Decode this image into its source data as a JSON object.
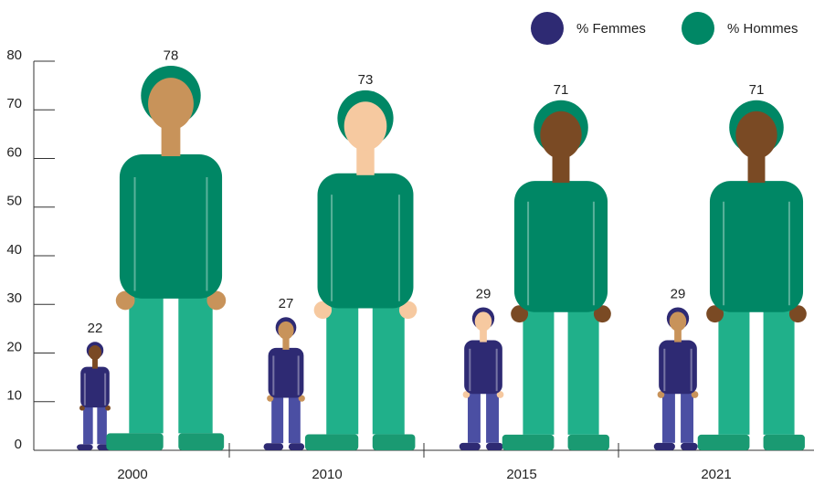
{
  "chart_data": {
    "type": "pictograph",
    "categories": [
      "2000",
      "2010",
      "2015",
      "2021"
    ],
    "series": [
      {
        "name": "% Femmes",
        "color": "#2e2a73",
        "values": [
          22,
          27,
          29,
          29
        ]
      },
      {
        "name": "% Hommes",
        "color": "#008765",
        "values": [
          78,
          73,
          71,
          71
        ]
      }
    ],
    "ylim": [
      0,
      80
    ],
    "yticks": [
      0,
      10,
      20,
      30,
      40,
      50,
      60,
      70,
      80
    ]
  }
}
